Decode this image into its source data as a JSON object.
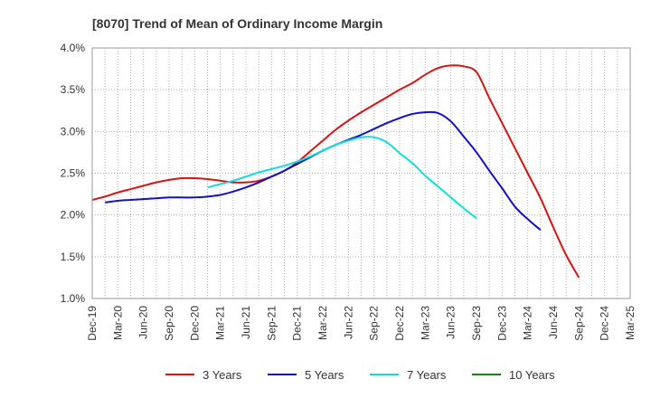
{
  "chart_data": {
    "type": "line",
    "title": "[8070]  Trend of Mean of Ordinary Income Margin",
    "xlabel": "",
    "ylabel": "",
    "ylim": [
      1.0,
      4.0
    ],
    "y_ticks": [
      "1.0%",
      "1.5%",
      "2.0%",
      "2.5%",
      "3.0%",
      "3.5%",
      "4.0%"
    ],
    "y_tick_values": [
      1.0,
      1.5,
      2.0,
      2.5,
      3.0,
      3.5,
      4.0
    ],
    "x_ticks": [
      "Dec-19",
      "Mar-20",
      "Jun-20",
      "Sep-20",
      "Dec-20",
      "Mar-21",
      "Jun-21",
      "Sep-21",
      "Dec-21",
      "Mar-22",
      "Jun-22",
      "Sep-22",
      "Dec-22",
      "Mar-23",
      "Jun-23",
      "Sep-23",
      "Dec-23",
      "Mar-24",
      "Jun-24",
      "Sep-24",
      "Dec-24",
      "Mar-25"
    ],
    "grid": true,
    "legend_position": "bottom",
    "series": [
      {
        "name": "3 Years",
        "color": "#dd1111",
        "start_index": 0,
        "values": [
          2.18,
          2.22,
          2.27,
          2.31,
          2.35,
          2.39,
          2.42,
          2.44,
          2.44,
          2.43,
          2.41,
          2.39,
          2.39,
          2.41,
          2.46,
          2.53,
          2.63,
          2.76,
          2.89,
          3.02,
          3.13,
          3.23,
          3.32,
          3.41,
          3.5,
          3.58,
          3.68,
          3.76,
          3.79,
          3.78,
          3.71,
          3.4,
          3.1,
          2.8,
          2.5,
          2.2,
          1.85,
          1.52,
          1.25
        ]
      },
      {
        "name": "5 Years",
        "color": "#1111cc",
        "start_index": 1,
        "values": [
          2.15,
          2.17,
          2.18,
          2.19,
          2.2,
          2.21,
          2.21,
          2.21,
          2.22,
          2.24,
          2.28,
          2.33,
          2.39,
          2.46,
          2.53,
          2.61,
          2.69,
          2.77,
          2.84,
          2.9,
          2.96,
          3.03,
          3.1,
          3.16,
          3.21,
          3.23,
          3.22,
          3.12,
          2.94,
          2.75,
          2.53,
          2.32,
          2.1,
          1.95,
          1.82
        ]
      },
      {
        "name": "7 Years",
        "color": "#11dddd",
        "start_index": 9,
        "values": [
          2.33,
          2.37,
          2.41,
          2.46,
          2.51,
          2.55,
          2.59,
          2.64,
          2.7,
          2.77,
          2.84,
          2.89,
          2.93,
          2.93,
          2.87,
          2.74,
          2.62,
          2.47,
          2.34,
          2.21,
          2.08,
          1.96
        ]
      },
      {
        "name": "10 Years",
        "color": "#118811",
        "start_index": 0,
        "values": []
      }
    ]
  }
}
